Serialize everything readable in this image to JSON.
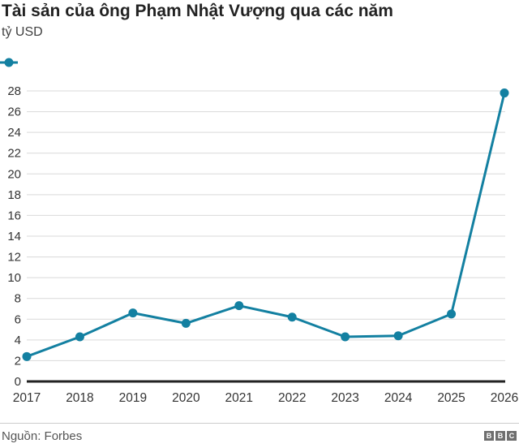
{
  "header": {
    "title": "Tài sản của ông Phạm Nhật Vượng qua các năm",
    "subtitle": "tỷ USD"
  },
  "chart_data": {
    "type": "line",
    "categories": [
      "2017",
      "2018",
      "2019",
      "2020",
      "2021",
      "2022",
      "2023",
      "2024",
      "2025",
      "2026"
    ],
    "values": [
      2.4,
      4.3,
      6.6,
      5.6,
      7.3,
      6.2,
      4.3,
      4.4,
      6.5,
      27.8
    ],
    "title": "Tài sản của ông Phạm Nhật Vượng qua các năm",
    "xlabel": "",
    "ylabel": "tỷ USD",
    "ylim": [
      0,
      28
    ],
    "ytick_step": 2,
    "grid": true,
    "legend_position": "top-left",
    "line_color": "#1380A1",
    "grid_color": "#d9d9d9",
    "axis_color": "#222222",
    "tick_label_color": "#333333"
  },
  "footer": {
    "source": "Nguồn: Forbes",
    "logo_letters": [
      "B",
      "B",
      "C"
    ]
  }
}
